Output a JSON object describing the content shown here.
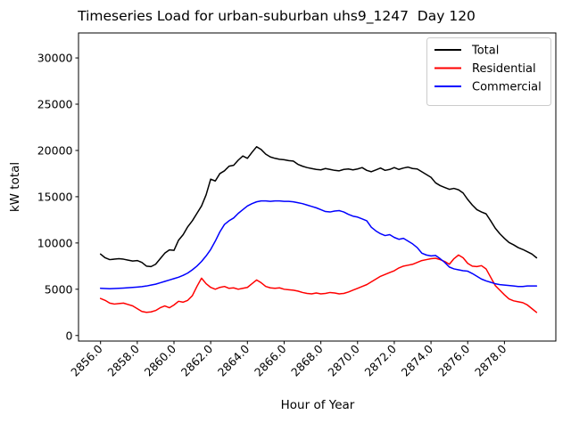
{
  "chart_data": {
    "type": "line",
    "title": "Timeseries Load for urban-suburban uhs9_1247  Day 120",
    "xlabel": "Hour of Year",
    "ylabel": "kW total",
    "xlim": [
      2854.8,
      2880.8
    ],
    "ylim": [
      -600,
      32700
    ],
    "grid": false,
    "legend_position": "upper right",
    "x_ticks": [
      2856,
      2858,
      2860,
      2862,
      2864,
      2866,
      2868,
      2870,
      2872,
      2874,
      2876,
      2878
    ],
    "x_tick_labels": [
      "2856.0",
      "2858.0",
      "2860.0",
      "2862.0",
      "2864.0",
      "2866.0",
      "2868.0",
      "2870.0",
      "2872.0",
      "2874.0",
      "2876.0",
      "2878.0"
    ],
    "y_ticks": [
      0,
      5000,
      10000,
      15000,
      20000,
      25000,
      30000
    ],
    "y_tick_labels": [
      "0",
      "5000",
      "10000",
      "15000",
      "20000",
      "25000",
      "30000"
    ],
    "x_start": 2856.0,
    "x_step": 0.25,
    "n_points": 96,
    "series": [
      {
        "name": "Total",
        "color": "#000000",
        "values": [
          8800,
          8400,
          8200,
          8250,
          8300,
          8250,
          8150,
          8050,
          8100,
          7900,
          7500,
          7450,
          7700,
          8300,
          8900,
          9250,
          9200,
          10300,
          10900,
          11750,
          12400,
          13200,
          14000,
          15200,
          16900,
          16700,
          17500,
          17800,
          18300,
          18400,
          18950,
          19400,
          19150,
          19800,
          20400,
          20100,
          19600,
          19300,
          19150,
          19050,
          19000,
          18900,
          18850,
          18500,
          18300,
          18150,
          18050,
          17950,
          17900,
          18050,
          17950,
          17850,
          17800,
          17950,
          18000,
          17900,
          18000,
          18150,
          17850,
          17700,
          17900,
          18100,
          17850,
          17950,
          18150,
          17950,
          18100,
          18200,
          18050,
          18000,
          17700,
          17400,
          17100,
          16500,
          16200,
          16000,
          15800,
          15900,
          15750,
          15400,
          14700,
          14100,
          13600,
          13350,
          13150,
          12400,
          11600,
          11000,
          10500,
          10050,
          9800,
          9500,
          9300,
          9050,
          8800,
          8400
        ]
      },
      {
        "name": "Residential",
        "color": "#ff0000",
        "values": [
          4000,
          3800,
          3500,
          3400,
          3450,
          3500,
          3350,
          3200,
          2900,
          2600,
          2500,
          2550,
          2700,
          3000,
          3200,
          3000,
          3300,
          3700,
          3600,
          3800,
          4300,
          5300,
          6200,
          5600,
          5200,
          5000,
          5200,
          5300,
          5100,
          5150,
          5000,
          5100,
          5200,
          5600,
          6000,
          5700,
          5300,
          5150,
          5100,
          5150,
          5000,
          4950,
          4900,
          4800,
          4650,
          4550,
          4500,
          4600,
          4500,
          4550,
          4650,
          4600,
          4500,
          4550,
          4700,
          4900,
          5100,
          5300,
          5500,
          5800,
          6100,
          6400,
          6600,
          6800,
          7000,
          7300,
          7500,
          7600,
          7700,
          7900,
          8100,
          8200,
          8300,
          8350,
          8200,
          8000,
          7700,
          8300,
          8700,
          8400,
          7800,
          7500,
          7450,
          7550,
          7200,
          6300,
          5400,
          4900,
          4400,
          3950,
          3750,
          3650,
          3550,
          3300,
          2900,
          2500
        ]
      },
      {
        "name": "Commercial",
        "color": "#0000ff",
        "values": [
          5100,
          5080,
          5060,
          5080,
          5100,
          5130,
          5160,
          5200,
          5240,
          5280,
          5350,
          5450,
          5550,
          5700,
          5850,
          6000,
          6150,
          6300,
          6500,
          6750,
          7100,
          7500,
          8000,
          8600,
          9300,
          10200,
          11200,
          12000,
          12400,
          12700,
          13200,
          13600,
          14000,
          14250,
          14450,
          14550,
          14550,
          14500,
          14550,
          14550,
          14500,
          14500,
          14450,
          14350,
          14250,
          14100,
          13950,
          13800,
          13600,
          13400,
          13350,
          13450,
          13500,
          13350,
          13100,
          12900,
          12800,
          12600,
          12400,
          11700,
          11300,
          11000,
          10800,
          10900,
          10600,
          10400,
          10500,
          10200,
          9900,
          9500,
          8900,
          8700,
          8600,
          8650,
          8300,
          7900,
          7400,
          7200,
          7100,
          7000,
          6950,
          6700,
          6400,
          6100,
          5900,
          5750,
          5600,
          5500,
          5450,
          5400,
          5350,
          5300,
          5300,
          5350,
          5350,
          5350
        ]
      }
    ]
  }
}
